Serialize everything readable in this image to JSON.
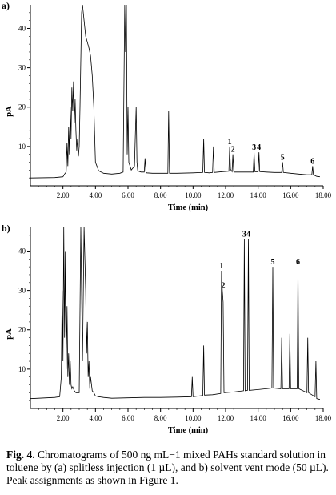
{
  "chart_data": [
    {
      "type": "line",
      "panel_label": "a)",
      "xlabel": "Time (min)",
      "ylabel": "pA",
      "xlim": [
        0,
        18
      ],
      "ylim": [
        0,
        46
      ],
      "xticks": [
        "2.00",
        "4.00",
        "6.00",
        "8.00",
        "10.00",
        "12.00",
        "14.00",
        "16.00",
        "18.00"
      ],
      "yticks": [
        "10",
        "20",
        "30",
        "40"
      ],
      "x": [
        0.0,
        1.5,
        2.0,
        2.1,
        2.2,
        2.25,
        2.3,
        2.35,
        2.4,
        2.45,
        2.5,
        2.55,
        2.6,
        2.65,
        2.7,
        2.75,
        2.8,
        2.85,
        2.9,
        2.95,
        3.0,
        3.05,
        3.1,
        3.15,
        3.2,
        3.3,
        3.4,
        3.5,
        3.6,
        3.7,
        3.8,
        3.9,
        4.0,
        4.2,
        4.5,
        5.0,
        5.5,
        5.7,
        5.8,
        5.85,
        5.9,
        5.95,
        6.0,
        6.05,
        6.2,
        6.4,
        6.45,
        6.5,
        6.55,
        6.6,
        6.8,
        7.0,
        7.05,
        7.1,
        7.15,
        7.5,
        8.0,
        8.45,
        8.5,
        8.55,
        9.0,
        10.0,
        10.6,
        10.65,
        10.7,
        11.0,
        11.2,
        11.25,
        11.3,
        11.8,
        12.2,
        12.25,
        12.3,
        12.4,
        12.45,
        12.5,
        12.55,
        13.0,
        13.5,
        13.7,
        13.75,
        13.8,
        13.9,
        14.0,
        14.05,
        14.1,
        14.5,
        15.0,
        15.45,
        15.5,
        15.55,
        16.0,
        16.5,
        17.0,
        17.3,
        17.35,
        17.4,
        17.6,
        17.8
      ],
      "y": [
        2.0,
        2.1,
        2.3,
        3.0,
        3.5,
        11.0,
        5.0,
        15.0,
        8.0,
        20.0,
        12.0,
        25.0,
        19.0,
        26.5,
        16.0,
        22.0,
        14.0,
        9.0,
        12.0,
        7.5,
        10.0,
        20.0,
        32.0,
        44.0,
        46.0,
        42.0,
        38.0,
        36.5,
        35.0,
        33.0,
        28.0,
        20.0,
        6.0,
        3.8,
        3.2,
        3.0,
        3.2,
        3.5,
        46.0,
        34.0,
        46.0,
        8.0,
        20.0,
        6.0,
        4.0,
        5.0,
        13.0,
        20.0,
        6.0,
        3.8,
        3.5,
        3.5,
        7.0,
        3.5,
        3.3,
        3.2,
        3.2,
        3.2,
        19.0,
        3.2,
        3.2,
        3.3,
        3.4,
        12.0,
        3.4,
        3.3,
        3.4,
        10.0,
        3.4,
        3.6,
        3.7,
        10.0,
        4.2,
        3.6,
        8.0,
        3.6,
        3.5,
        3.5,
        3.5,
        3.5,
        8.5,
        3.6,
        3.6,
        3.6,
        8.5,
        3.6,
        3.5,
        3.4,
        3.4,
        6.0,
        3.4,
        3.2,
        3.0,
        2.8,
        2.8,
        5.0,
        2.8,
        2.4,
        2.3
      ],
      "annotations": [
        {
          "label": "1",
          "x": 12.25,
          "y": 10.0
        },
        {
          "label": "2",
          "x": 12.45,
          "y": 8.0
        },
        {
          "label": "3",
          "x": 13.75,
          "y": 8.5
        },
        {
          "label": "4",
          "x": 14.05,
          "y": 8.5
        },
        {
          "label": "5",
          "x": 15.5,
          "y": 6.0
        },
        {
          "label": "6",
          "x": 17.35,
          "y": 5.0
        }
      ]
    },
    {
      "type": "line",
      "panel_label": "b)",
      "xlabel": "Time (min)",
      "ylabel": "pA",
      "xlim": [
        0,
        18
      ],
      "ylim": [
        0,
        46
      ],
      "xticks": [
        "2.00",
        "4.00",
        "6.00",
        "8.00",
        "10.00",
        "12.00",
        "14.00",
        "16.00",
        "18.00"
      ],
      "yticks": [
        "10",
        "20",
        "30",
        "40"
      ],
      "x": [
        0.0,
        1.5,
        1.8,
        1.9,
        1.95,
        2.0,
        2.05,
        2.1,
        2.15,
        2.2,
        2.25,
        2.3,
        2.35,
        2.4,
        2.45,
        2.5,
        2.55,
        2.6,
        2.7,
        2.8,
        3.0,
        3.1,
        3.2,
        3.3,
        3.4,
        3.45,
        3.5,
        3.55,
        3.6,
        3.65,
        3.7,
        3.8,
        3.9,
        4.0,
        4.2,
        4.5,
        5.0,
        6.0,
        7.0,
        8.0,
        9.0,
        9.9,
        9.95,
        10.0,
        10.6,
        10.65,
        10.7,
        11.2,
        11.7,
        11.75,
        11.8,
        11.85,
        11.9,
        12.5,
        13.1,
        13.15,
        13.2,
        13.35,
        13.4,
        13.45,
        14.0,
        14.5,
        14.85,
        14.9,
        14.95,
        15.4,
        15.45,
        15.5,
        15.9,
        15.95,
        16.0,
        16.4,
        16.45,
        16.5,
        17.0,
        17.05,
        17.1,
        17.5,
        17.55,
        17.6,
        17.8
      ],
      "y": [
        2.5,
        2.8,
        3.0,
        8.0,
        30.0,
        12.0,
        46.0,
        18.0,
        40.0,
        10.0,
        26.0,
        8.0,
        14.0,
        6.0,
        12.0,
        6.0,
        5.0,
        5.5,
        4.5,
        4.0,
        4.0,
        46.0,
        12.0,
        46.0,
        30.0,
        14.0,
        22.0,
        8.0,
        12.0,
        5.0,
        8.0,
        4.5,
        4.0,
        3.2,
        3.0,
        2.8,
        2.6,
        2.7,
        2.8,
        2.8,
        2.9,
        3.0,
        8.0,
        3.0,
        3.3,
        16.0,
        3.4,
        3.5,
        3.8,
        35.0,
        30.0,
        27.0,
        4.0,
        4.2,
        4.5,
        43.0,
        4.5,
        4.6,
        43.0,
        4.6,
        4.8,
        5.0,
        5.2,
        36.0,
        5.2,
        5.0,
        18.0,
        5.0,
        5.0,
        19.0,
        5.0,
        5.0,
        36.0,
        5.0,
        4.0,
        18.0,
        4.0,
        3.0,
        12.0,
        2.5,
        2.3
      ],
      "annotations": [
        {
          "label": "1",
          "x": 11.75,
          "y": 35.0
        },
        {
          "label": "2",
          "x": 11.85,
          "y": 30.0
        },
        {
          "label": "3",
          "x": 13.15,
          "y": 43.0
        },
        {
          "label": "4",
          "x": 13.4,
          "y": 43.0
        },
        {
          "label": "5",
          "x": 14.9,
          "y": 36.0
        },
        {
          "label": "6",
          "x": 16.45,
          "y": 36.0
        }
      ]
    }
  ],
  "caption": {
    "bold": "Fig. 4.",
    "text": " Chromatograms of 500 ng mL−1 mixed PAHs standard solution in toluene by (a) splitless injection (1 µL), and b) solvent vent mode (50 µL). Peak assignments as shown in Figure 1."
  }
}
